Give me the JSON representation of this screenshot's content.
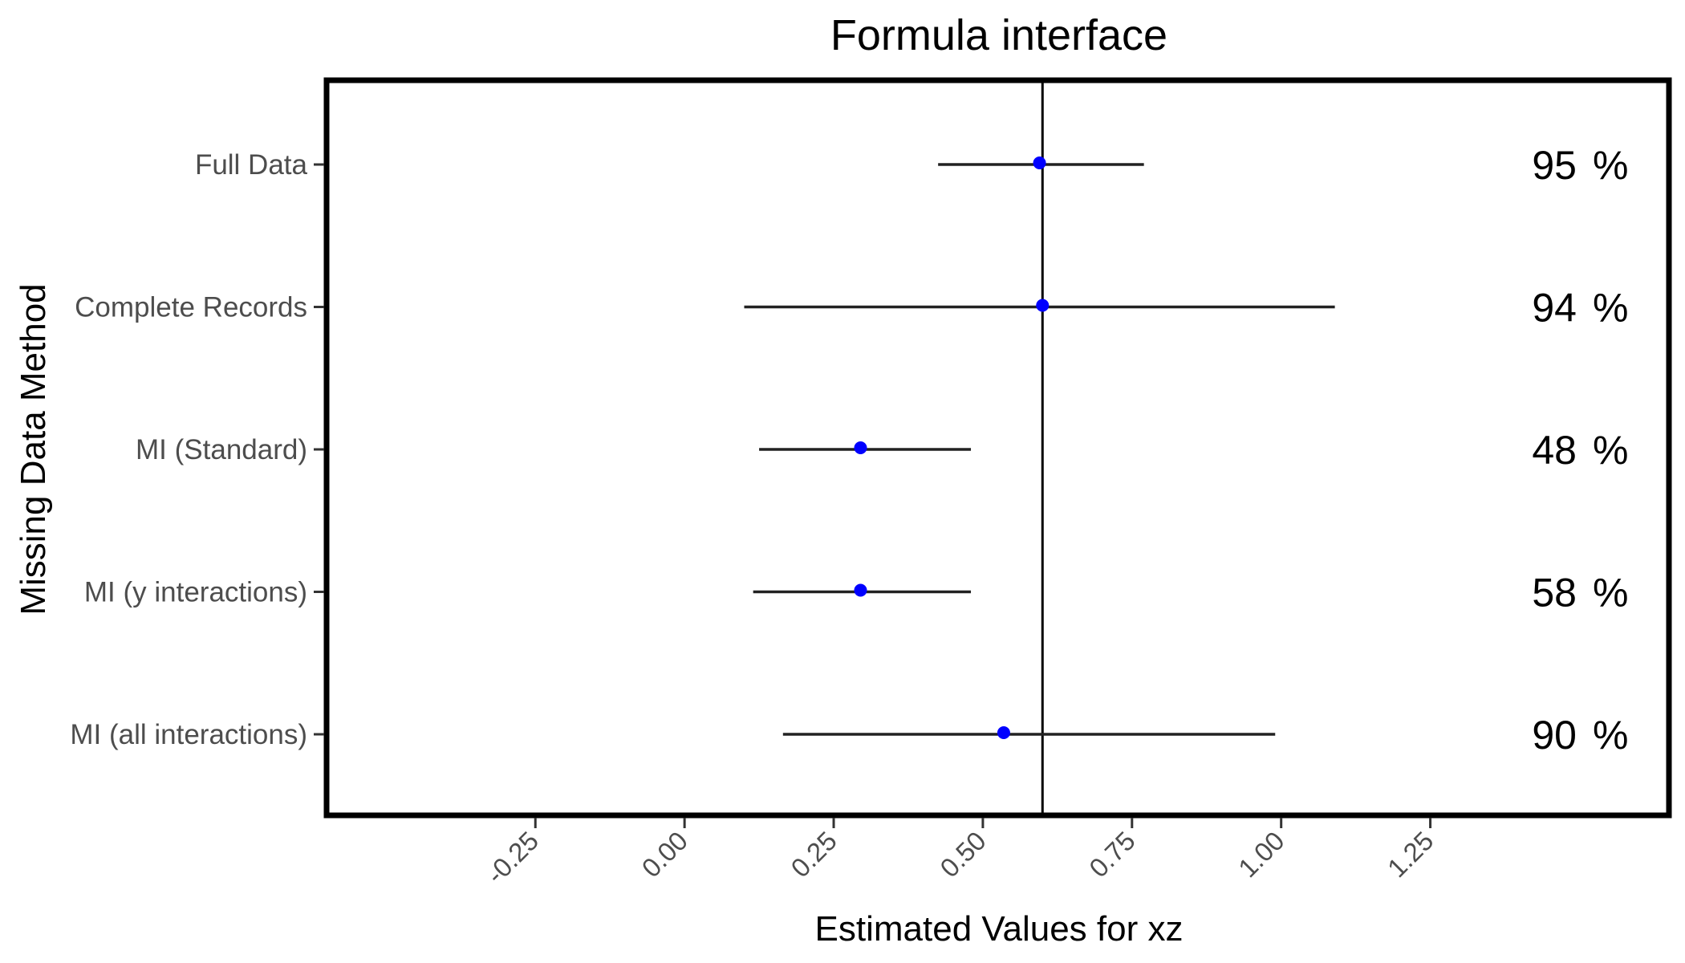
{
  "chart_data": {
    "type": "forest",
    "title": "Formula interface",
    "xlabel": "Estimated Values for xz",
    "ylabel": "Missing Data Method",
    "xlim": [
      -0.6,
      1.65
    ],
    "x_ticks": [
      -0.25,
      0.0,
      0.25,
      0.5,
      0.75,
      1.0,
      1.25
    ],
    "x_tick_labels": [
      "-0.25",
      "0.00",
      "0.25",
      "0.50",
      "0.75",
      "1.00",
      "1.25"
    ],
    "reference_line": 0.6,
    "grid": false,
    "point_color": "#0000ff",
    "coverage_unit": "%",
    "series": [
      {
        "category": "Full Data",
        "estimate": 0.595,
        "lower": 0.425,
        "upper": 0.77,
        "coverage": "95"
      },
      {
        "category": "Complete Records",
        "estimate": 0.6,
        "lower": 0.1,
        "upper": 1.09,
        "coverage": "94"
      },
      {
        "category": "MI (Standard)",
        "estimate": 0.295,
        "lower": 0.125,
        "upper": 0.48,
        "coverage": "48"
      },
      {
        "category": "MI (y interactions)",
        "estimate": 0.295,
        "lower": 0.115,
        "upper": 0.48,
        "coverage": "58"
      },
      {
        "category": "MI (all interactions)",
        "estimate": 0.535,
        "lower": 0.165,
        "upper": 0.99,
        "coverage": "90"
      }
    ]
  }
}
